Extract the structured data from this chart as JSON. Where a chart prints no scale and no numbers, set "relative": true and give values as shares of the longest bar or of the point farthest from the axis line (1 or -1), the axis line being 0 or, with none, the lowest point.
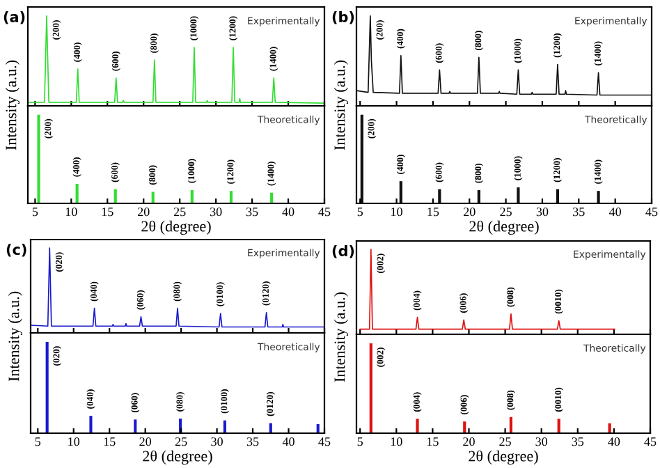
{
  "chart_data": [
    {
      "type": "line",
      "title": "(a)",
      "subtitle": "Experimentally",
      "ylabel": "Intensity (a.u.)",
      "relative": true,
      "xlim": [
        4,
        45
      ],
      "xticks": [
        5,
        10,
        15,
        20,
        25,
        30,
        35,
        40,
        45
      ],
      "tick_labels": false,
      "series": [
        {
          "color": "#33dd33",
          "x": [
            4,
            6.3,
            6.6,
            6.9,
            10.7,
            10.9,
            11.1,
            16.0,
            16.2,
            16.4,
            17.1,
            17.2,
            17.3,
            21.3,
            21.5,
            21.7,
            26.8,
            27.0,
            27.2,
            28.7,
            28.8,
            28.9,
            32.2,
            32.4,
            32.6,
            33.2,
            33.3,
            33.4,
            37.8,
            38.0,
            38.2,
            45
          ],
          "values": [
            0.04,
            0.04,
            1.0,
            0.04,
            0.04,
            0.41,
            0.04,
            0.04,
            0.31,
            0.04,
            0.04,
            0.06,
            0.04,
            0.04,
            0.51,
            0.04,
            0.04,
            0.65,
            0.04,
            0.04,
            0.06,
            0.04,
            0.04,
            0.65,
            0.04,
            0.04,
            0.08,
            0.04,
            0.04,
            0.31,
            0.04,
            0.03
          ]
        }
      ],
      "annotations": [
        {
          "text": "(200)",
          "x": 6.6,
          "y": 1.0
        },
        {
          "text": "(400)",
          "x": 10.9,
          "y": 0.41
        },
        {
          "text": "(600)",
          "x": 16.2,
          "y": 0.31
        },
        {
          "text": "(800)",
          "x": 21.5,
          "y": 0.51
        },
        {
          "text": "(1000)",
          "x": 27.0,
          "y": 0.65
        },
        {
          "text": "(1200)",
          "x": 32.4,
          "y": 0.65
        },
        {
          "text": "(1400)",
          "x": 38.0,
          "y": 0.31
        }
      ]
    },
    {
      "type": "bar",
      "subtitle": "Theoretically",
      "xlabel": "2θ (degree)",
      "relative": true,
      "xlim": [
        4,
        45
      ],
      "xticks": [
        5,
        10,
        15,
        20,
        25,
        30,
        35,
        40,
        45
      ],
      "tick_labels": "x",
      "series": [
        {
          "color": "#33dd33",
          "x": [
            5.5,
            10.8,
            16.1,
            21.3,
            26.7,
            32.1,
            37.7
          ],
          "values": [
            1.0,
            0.22,
            0.16,
            0.13,
            0.15,
            0.14,
            0.12
          ]
        }
      ],
      "annotations": [
        {
          "text": "(200)",
          "x": 5.5,
          "y": 1.0
        },
        {
          "text": "(400)",
          "x": 10.8,
          "y": 0.22
        },
        {
          "text": "(600)",
          "x": 16.1,
          "y": 0.16
        },
        {
          "text": "(800)",
          "x": 21.3,
          "y": 0.13
        },
        {
          "text": "(1000)",
          "x": 26.7,
          "y": 0.15
        },
        {
          "text": "(1200)",
          "x": 32.1,
          "y": 0.14
        },
        {
          "text": "(1400)",
          "x": 37.7,
          "y": 0.12
        }
      ]
    },
    {
      "type": "line",
      "title": "(b)",
      "subtitle": "Experimentally",
      "ylabel": "Intensity (a.u.)",
      "relative": true,
      "xlim": [
        4.5,
        45
      ],
      "xticks": [
        5,
        10,
        15,
        20,
        25,
        30,
        35,
        40,
        45
      ],
      "tick_labels": false,
      "series": [
        {
          "color": "#111111",
          "x": [
            4.5,
            6.1,
            6.4,
            6.55,
            6.8,
            10.4,
            10.6,
            10.8,
            15.7,
            15.9,
            16.1,
            17.2,
            17.3,
            17.4,
            21.1,
            21.3,
            21.5,
            24.0,
            24.1,
            24.2,
            26.5,
            26.7,
            26.9,
            28.5,
            28.6,
            28.7,
            31.9,
            32.1,
            32.3,
            33.1,
            33.2,
            33.3,
            37.5,
            37.7,
            37.9,
            45
          ],
          "values": [
            0.17,
            0.15,
            1.0,
            0.5,
            0.15,
            0.14,
            0.56,
            0.14,
            0.14,
            0.4,
            0.14,
            0.14,
            0.16,
            0.14,
            0.14,
            0.54,
            0.14,
            0.14,
            0.16,
            0.14,
            0.13,
            0.4,
            0.13,
            0.13,
            0.15,
            0.13,
            0.13,
            0.46,
            0.13,
            0.13,
            0.17,
            0.13,
            0.12,
            0.37,
            0.12,
            0.12
          ]
        }
      ],
      "annotations": [
        {
          "text": "(200)",
          "x": 6.4,
          "y": 1.0
        },
        {
          "text": "(400)",
          "x": 10.6,
          "y": 0.56
        },
        {
          "text": "(600)",
          "x": 15.9,
          "y": 0.4
        },
        {
          "text": "(800)",
          "x": 21.3,
          "y": 0.54
        },
        {
          "text": "(1000)",
          "x": 26.7,
          "y": 0.4
        },
        {
          "text": "(1200)",
          "x": 32.1,
          "y": 0.46
        },
        {
          "text": "(1400)",
          "x": 37.7,
          "y": 0.37
        }
      ]
    },
    {
      "type": "bar",
      "subtitle": "Theoretically",
      "xlabel": "2θ (degree)",
      "relative": true,
      "xlim": [
        4.5,
        45
      ],
      "xticks": [
        5,
        10,
        15,
        20,
        25,
        30,
        35,
        40,
        45
      ],
      "tick_labels": "x",
      "series": [
        {
          "color": "#111111",
          "x": [
            5.25,
            10.6,
            15.9,
            21.3,
            26.7,
            32.1,
            37.7
          ],
          "values": [
            1.0,
            0.25,
            0.16,
            0.15,
            0.18,
            0.16,
            0.14
          ]
        }
      ],
      "annotations": [
        {
          "text": "(200)",
          "x": 5.25,
          "y": 1.0
        },
        {
          "text": "(400)",
          "x": 10.6,
          "y": 0.25
        },
        {
          "text": "(600)",
          "x": 15.9,
          "y": 0.16
        },
        {
          "text": "(800)",
          "x": 21.3,
          "y": 0.15
        },
        {
          "text": "(1000)",
          "x": 26.7,
          "y": 0.18
        },
        {
          "text": "(1200)",
          "x": 32.1,
          "y": 0.16
        },
        {
          "text": "(1400)",
          "x": 37.7,
          "y": 0.14
        }
      ]
    },
    {
      "type": "line",
      "title": "(c)",
      "subtitle": "Experimentally",
      "ylabel": "Intensity (a.u.)",
      "relative": true,
      "xlim": [
        4,
        45
      ],
      "xticks": [
        5,
        10,
        15,
        20,
        25,
        30,
        35,
        40,
        45
      ],
      "tick_labels": false,
      "series": [
        {
          "color": "#1a1acc",
          "x": [
            4,
            6.4,
            6.65,
            6.9,
            12.7,
            12.9,
            13.1,
            15.4,
            15.5,
            15.6,
            17.2,
            17.3,
            17.4,
            19.2,
            19.4,
            19.6,
            24.3,
            24.5,
            24.7,
            30.3,
            30.5,
            30.7,
            36.7,
            36.9,
            37.1,
            39.1,
            39.2,
            39.3,
            45
          ],
          "values": [
            0.09,
            0.08,
            1.0,
            0.08,
            0.08,
            0.29,
            0.08,
            0.08,
            0.1,
            0.08,
            0.08,
            0.11,
            0.08,
            0.08,
            0.19,
            0.08,
            0.08,
            0.29,
            0.08,
            0.07,
            0.23,
            0.07,
            0.07,
            0.24,
            0.07,
            0.07,
            0.1,
            0.07,
            0.07
          ]
        }
      ],
      "annotations": [
        {
          "text": "(020)",
          "x": 6.65,
          "y": 1.0
        },
        {
          "text": "(040)",
          "x": 12.9,
          "y": 0.29
        },
        {
          "text": "(060)",
          "x": 19.4,
          "y": 0.19
        },
        {
          "text": "(080)",
          "x": 24.5,
          "y": 0.29
        },
        {
          "text": "(0100)",
          "x": 30.5,
          "y": 0.23
        },
        {
          "text": "(0120)",
          "x": 36.9,
          "y": 0.24
        }
      ]
    },
    {
      "type": "bar",
      "subtitle": "Theoretically",
      "xlabel": "2θ (degree)",
      "relative": true,
      "xlim": [
        4,
        45
      ],
      "xticks": [
        5,
        10,
        15,
        20,
        25,
        30,
        35,
        40,
        45
      ],
      "tick_labels": "x",
      "series": [
        {
          "color": "#1a1acc",
          "x": [
            6.3,
            12.4,
            18.6,
            24.9,
            31.1,
            37.5,
            44.1
          ],
          "values": [
            1.0,
            0.19,
            0.15,
            0.16,
            0.14,
            0.11,
            0.1
          ]
        }
      ],
      "annotations": [
        {
          "text": "(020)",
          "x": 6.3,
          "y": 1.0
        },
        {
          "text": "(040)",
          "x": 12.4,
          "y": 0.19
        },
        {
          "text": "(060)",
          "x": 18.6,
          "y": 0.15
        },
        {
          "text": "(080)",
          "x": 24.9,
          "y": 0.16
        },
        {
          "text": "(0100)",
          "x": 31.1,
          "y": 0.14
        },
        {
          "text": "(0120)",
          "x": 37.5,
          "y": 0.11
        }
      ]
    },
    {
      "type": "line",
      "title": "(d)",
      "subtitle": "Experimentally",
      "ylabel": "Intensity (a.u.)",
      "relative": true,
      "xlim": [
        4.5,
        45
      ],
      "xticks": [
        5,
        10,
        15,
        20,
        25,
        30,
        35,
        40,
        45
      ],
      "tick_labels": false,
      "series": [
        {
          "color": "#dd1111",
          "x": [
            5,
            6.3,
            6.5,
            6.7,
            12.7,
            12.9,
            13.1,
            19.1,
            19.3,
            19.5,
            25.6,
            25.8,
            26.0,
            32.2,
            32.4,
            32.6,
            40.1
          ],
          "values": [
            0.06,
            0.06,
            1.0,
            0.06,
            0.06,
            0.2,
            0.06,
            0.06,
            0.17,
            0.06,
            0.06,
            0.24,
            0.06,
            0.06,
            0.16,
            0.06,
            0.06
          ]
        }
      ],
      "annotations": [
        {
          "text": "(002)",
          "x": 6.5,
          "y": 1.0
        },
        {
          "text": "(004)",
          "x": 12.9,
          "y": 0.2
        },
        {
          "text": "(006)",
          "x": 19.3,
          "y": 0.17
        },
        {
          "text": "(008)",
          "x": 25.8,
          "y": 0.24
        },
        {
          "text": "(0010)",
          "x": 32.4,
          "y": 0.16
        }
      ]
    },
    {
      "type": "bar",
      "subtitle": "Theoretically",
      "xlabel": "2θ (degree)",
      "relative": true,
      "xlim": [
        4.5,
        45
      ],
      "xticks": [
        5,
        10,
        15,
        20,
        25,
        30,
        35,
        40,
        45
      ],
      "tick_labels": "x",
      "series": [
        {
          "color": "#dd1111",
          "x": [
            6.5,
            12.9,
            19.4,
            25.8,
            32.4,
            39.4
          ],
          "values": [
            1.0,
            0.16,
            0.13,
            0.18,
            0.16,
            0.11
          ]
        }
      ],
      "annotations": [
        {
          "text": "(002)",
          "x": 6.5,
          "y": 1.0
        },
        {
          "text": "(004)",
          "x": 12.9,
          "y": 0.16
        },
        {
          "text": "(006)",
          "x": 19.4,
          "y": 0.13
        },
        {
          "text": "(008)",
          "x": 25.8,
          "y": 0.18
        },
        {
          "text": "(0010)",
          "x": 32.4,
          "y": 0.16
        }
      ]
    }
  ]
}
